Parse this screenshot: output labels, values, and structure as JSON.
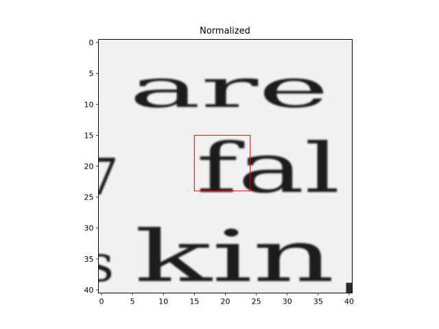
{
  "chart_data": {
    "type": "heatmap",
    "title": "Normalized",
    "xlabel": "",
    "ylabel": "",
    "xlim": [
      -0.5,
      40.5
    ],
    "ylim": [
      40.5,
      -0.5
    ],
    "x_ticks": [
      0,
      5,
      10,
      15,
      20,
      25,
      30,
      35,
      40
    ],
    "y_ticks": [
      0,
      5,
      10,
      15,
      20,
      25,
      30,
      35,
      40
    ],
    "colormap": "gray",
    "grid": false,
    "image_content": {
      "row1_text": "are",
      "row2_left": "7",
      "row2_text": "fal",
      "row3_left": "s",
      "row3_text": "kin"
    },
    "highlight_box": {
      "x_range": [
        15,
        24
      ],
      "y_range": [
        15,
        24
      ],
      "color": "#ff0000"
    }
  }
}
